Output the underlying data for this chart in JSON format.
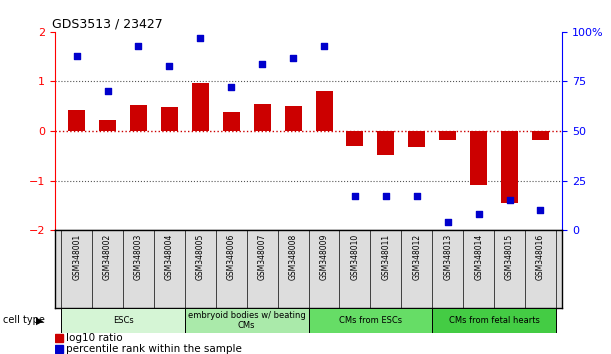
{
  "title": "GDS3513 / 23427",
  "samples": [
    "GSM348001",
    "GSM348002",
    "GSM348003",
    "GSM348004",
    "GSM348005",
    "GSM348006",
    "GSM348007",
    "GSM348008",
    "GSM348009",
    "GSM348010",
    "GSM348011",
    "GSM348012",
    "GSM348013",
    "GSM348014",
    "GSM348015",
    "GSM348016"
  ],
  "log10_ratio": [
    0.42,
    0.22,
    0.52,
    0.48,
    0.97,
    0.38,
    0.55,
    0.5,
    0.8,
    -0.3,
    -0.48,
    -0.32,
    -0.18,
    -1.08,
    -1.45,
    -0.18
  ],
  "percentile_rank": [
    88,
    70,
    93,
    83,
    97,
    72,
    84,
    87,
    93,
    17,
    17,
    17,
    4,
    8,
    15,
    10
  ],
  "cell_types": [
    {
      "label": "ESCs",
      "start": 0,
      "end": 4,
      "color": "#d5f5d5"
    },
    {
      "label": "embryoid bodies w/ beating\nCMs",
      "start": 4,
      "end": 8,
      "color": "#aaeaaa"
    },
    {
      "label": "CMs from ESCs",
      "start": 8,
      "end": 12,
      "color": "#66dd66"
    },
    {
      "label": "CMs from fetal hearts",
      "start": 12,
      "end": 16,
      "color": "#44cc44"
    }
  ],
  "bar_color": "#cc0000",
  "dot_color": "#0000cc",
  "ylim_left": [
    -2,
    2
  ],
  "ylim_right": [
    0,
    100
  ],
  "yticks_left": [
    -2,
    -1,
    0,
    1,
    2
  ],
  "yticks_right": [
    0,
    25,
    50,
    75,
    100
  ],
  "yticklabels_right": [
    "0",
    "25",
    "50",
    "75",
    "100%"
  ],
  "dotted_line_color": "#555555",
  "zero_line_color": "#cc0000",
  "background_color": "#ffffff"
}
